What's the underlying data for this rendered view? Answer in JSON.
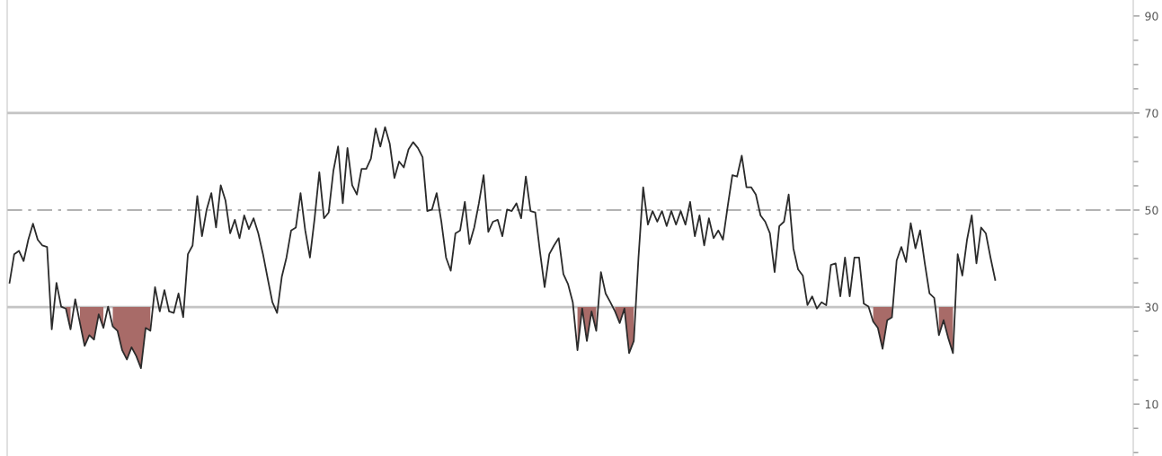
{
  "chart_data": {
    "type": "line",
    "categories": [
      null,
      null,
      null,
      null,
      null,
      null,
      null,
      null,
      null,
      null,
      null,
      null,
      null,
      null,
      null,
      null,
      null,
      null,
      null,
      null,
      null,
      null,
      null,
      null,
      null,
      null,
      null,
      null,
      null,
      null,
      null,
      null,
      null,
      null,
      null,
      null,
      null,
      null,
      null,
      null,
      null,
      null,
      null,
      null,
      null,
      null,
      null,
      null,
      null,
      null,
      null,
      null,
      null,
      null,
      null,
      null,
      null,
      null,
      null,
      null,
      null,
      null,
      null,
      null,
      null,
      null,
      null,
      null,
      null,
      null,
      null,
      null,
      null,
      null,
      null,
      null,
      null,
      null,
      null,
      null,
      null,
      null,
      null,
      null,
      null,
      null,
      null,
      null,
      null,
      null,
      null,
      null,
      null,
      null,
      null,
      null,
      null,
      null,
      null,
      null,
      null,
      null,
      null,
      null,
      null,
      null,
      null,
      null,
      null,
      null,
      null,
      null,
      null,
      null,
      null,
      null,
      null,
      null,
      null,
      null,
      null,
      null,
      null,
      null,
      null,
      null,
      null,
      null,
      null,
      null,
      null,
      null,
      null,
      null,
      null,
      null,
      null,
      null,
      null,
      null,
      null,
      null,
      null,
      null,
      null,
      null,
      null,
      null,
      null,
      null,
      null,
      null,
      null,
      null,
      null,
      null,
      null,
      null,
      null,
      null,
      null,
      null,
      null,
      null,
      null,
      null,
      null,
      null,
      null,
      null,
      null,
      null,
      null,
      null,
      null,
      null,
      null,
      null,
      null,
      null,
      null,
      null,
      null,
      null,
      null,
      null,
      null,
      null,
      null,
      null,
      null,
      null,
      null,
      null,
      null,
      null,
      null,
      null,
      null,
      null,
      null,
      null,
      null,
      null,
      null,
      null,
      null,
      null,
      null,
      null,
      null
    ],
    "series": [
      {
        "color": "#2b2b2b",
        "values": [
          35.0,
          40.9,
          41.6,
          39.5,
          43.9,
          47.2,
          43.9,
          42.7,
          42.4,
          25.4,
          35.0,
          30.1,
          29.7,
          25.4,
          31.6,
          26.7,
          22.0,
          24.2,
          23.3,
          28.5,
          25.7,
          30.1,
          26.0,
          25.1,
          21.1,
          19.2,
          21.7,
          19.9,
          17.4,
          25.7,
          25.1,
          34.1,
          29.1,
          33.5,
          29.1,
          28.8,
          32.8,
          27.9,
          40.9,
          42.7,
          52.9,
          44.6,
          50.1,
          53.5,
          46.4,
          55.1,
          52.0,
          45.2,
          48.0,
          44.2,
          48.9,
          46.1,
          48.3,
          45.2,
          40.9,
          35.9,
          31.0,
          28.8,
          36.2,
          40.2,
          45.8,
          46.4,
          53.5,
          45.8,
          40.2,
          48.3,
          57.8,
          48.3,
          49.5,
          58.1,
          63.1,
          51.4,
          62.8,
          55.1,
          53.2,
          58.5,
          58.5,
          60.6,
          66.8,
          63.1,
          67.1,
          63.7,
          56.6,
          60.0,
          58.8,
          62.5,
          64.0,
          62.8,
          60.9,
          49.8,
          50.1,
          53.5,
          47.6,
          40.2,
          37.5,
          45.2,
          45.8,
          51.7,
          43.0,
          46.4,
          51.4,
          57.2,
          45.5,
          47.6,
          48.0,
          44.6,
          50.1,
          49.8,
          51.4,
          48.3,
          56.9,
          49.8,
          49.5,
          41.5,
          34.1,
          40.9,
          42.7,
          44.2,
          36.8,
          34.7,
          31.0,
          21.1,
          29.7,
          23.0,
          29.1,
          25.1,
          37.2,
          32.8,
          31.0,
          29.1,
          26.7,
          29.7,
          20.5,
          23.0,
          40.2,
          54.7,
          47.0,
          49.8,
          47.6,
          49.8,
          46.7,
          49.8,
          47.0,
          49.8,
          47.0,
          51.7,
          44.6,
          48.9,
          42.7,
          48.3,
          44.2,
          45.8,
          43.9,
          50.7,
          57.2,
          56.9,
          61.2,
          54.7,
          54.7,
          53.2,
          48.9,
          47.6,
          45.2,
          37.2,
          46.7,
          47.6,
          53.2,
          42.1,
          37.8,
          36.5,
          30.4,
          32.2,
          29.7,
          31.0,
          30.4,
          38.7,
          39.0,
          32.2,
          40.2,
          32.2,
          40.2,
          40.2,
          30.7,
          30.1,
          27.0,
          25.7,
          21.4,
          27.3,
          27.9,
          39.6,
          42.4,
          39.3,
          47.3,
          42.1,
          45.8,
          39.0,
          32.8,
          31.9,
          24.2,
          27.3,
          23.6,
          20.5,
          40.9,
          36.5,
          43.9,
          48.9,
          39.0,
          46.4,
          45.2,
          40.2,
          35.6
        ],
        "lower": [
          null,
          null,
          null,
          null,
          null,
          null,
          null,
          null,
          null,
          null,
          null,
          null,
          29.7,
          25.4,
          null,
          26.7,
          22.0,
          24.2,
          23.3,
          28.5,
          25.7,
          null,
          26.0,
          25.1,
          21.1,
          19.2,
          21.7,
          19.9,
          17.4,
          25.7,
          25.1,
          null,
          null,
          null,
          null,
          null,
          null,
          null,
          null,
          null,
          null,
          null,
          null,
          null,
          null,
          null,
          null,
          null,
          null,
          null,
          null,
          null,
          null,
          null,
          null,
          null,
          null,
          null,
          null,
          null,
          null,
          null,
          null,
          null,
          null,
          null,
          null,
          null,
          null,
          null,
          null,
          null,
          null,
          null,
          null,
          null,
          null,
          null,
          null,
          null,
          null,
          null,
          null,
          null,
          null,
          null,
          null,
          null,
          null,
          null,
          null,
          null,
          null,
          null,
          null,
          null,
          null,
          null,
          null,
          null,
          null,
          null,
          null,
          null,
          null,
          null,
          null,
          null,
          null,
          null,
          null,
          null,
          null,
          null,
          null,
          null,
          null,
          null,
          null,
          null,
          null,
          21.1,
          29.7,
          23.0,
          29.1,
          25.1,
          null,
          null,
          null,
          29.1,
          26.7,
          29.7,
          20.5,
          23.0,
          null,
          null,
          null,
          null,
          null,
          null,
          null,
          null,
          null,
          null,
          null,
          null,
          null,
          null,
          null,
          null,
          null,
          null,
          null,
          null,
          null,
          null,
          null,
          null,
          null,
          null,
          null,
          null,
          null,
          null,
          null,
          null,
          null,
          null,
          null,
          null,
          null,
          null,
          null,
          null,
          null,
          null,
          null,
          null,
          null,
          null,
          null,
          null,
          null,
          null,
          27.0,
          25.7,
          21.4,
          27.3,
          27.9,
          null,
          null,
          null,
          null,
          null,
          null,
          null,
          null,
          null,
          24.2,
          27.3,
          23.6,
          20.5,
          null,
          null,
          null,
          null,
          null,
          null,
          null,
          null,
          null
        ],
        "upper": [
          null,
          null,
          null,
          null,
          null,
          null,
          null,
          null,
          null,
          null,
          null,
          null,
          30,
          30,
          null,
          30,
          30,
          30,
          30,
          30,
          30,
          null,
          30,
          30,
          30,
          30,
          30,
          30,
          30,
          30,
          30,
          null,
          null,
          null,
          null,
          null,
          null,
          null,
          null,
          null,
          null,
          null,
          null,
          null,
          null,
          null,
          null,
          null,
          null,
          null,
          null,
          null,
          null,
          null,
          null,
          null,
          null,
          null,
          null,
          null,
          null,
          null,
          null,
          null,
          null,
          null,
          null,
          null,
          null,
          null,
          null,
          null,
          null,
          null,
          null,
          null,
          null,
          null,
          null,
          null,
          null,
          null,
          null,
          null,
          null,
          null,
          null,
          null,
          null,
          null,
          null,
          null,
          null,
          null,
          null,
          null,
          null,
          null,
          null,
          null,
          null,
          null,
          null,
          null,
          null,
          null,
          null,
          null,
          null,
          null,
          null,
          null,
          null,
          null,
          null,
          null,
          null,
          null,
          null,
          null,
          null,
          30,
          30,
          30,
          30,
          30,
          null,
          null,
          null,
          30,
          30,
          30,
          30,
          30,
          null,
          null,
          null,
          null,
          null,
          null,
          null,
          null,
          null,
          null,
          null,
          null,
          null,
          null,
          null,
          null,
          null,
          null,
          null,
          null,
          null,
          null,
          null,
          null,
          null,
          null,
          null,
          null,
          null,
          null,
          null,
          null,
          null,
          null,
          null,
          null,
          null,
          null,
          null,
          null,
          null,
          null,
          null,
          null,
          null,
          null,
          null,
          null,
          null,
          null,
          30,
          30,
          30,
          30,
          30,
          null,
          null,
          null,
          null,
          null,
          null,
          null,
          null,
          null,
          30,
          30,
          30,
          30,
          null,
          null,
          null,
          null,
          null,
          null,
          null,
          null,
          null
        ]
      }
    ],
    "ylim": [
      -0.7,
      93.3
    ],
    "yticks": [
      10,
      30,
      50,
      70,
      90
    ],
    "ref_lines": [
      {
        "axis": "y",
        "value": 70,
        "color": "#c4c4c4",
        "line_style": "solid"
      },
      {
        "axis": "y",
        "value": 50,
        "color": "#9a9a9a",
        "line_style": "dashed"
      },
      {
        "axis": "y",
        "value": 30,
        "color": "#c4c4c4",
        "line_style": "solid"
      }
    ],
    "grid": false,
    "legend": false,
    "tick_labels": "y",
    "marker": "none",
    "line_style": "solid"
  }
}
